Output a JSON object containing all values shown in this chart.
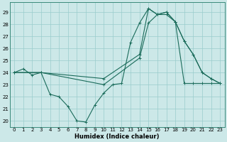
{
  "xlabel": "Humidex (Indice chaleur)",
  "bg_color": "#cce8e8",
  "line_color": "#1a6b5a",
  "grid_color": "#99cccc",
  "xlim": [
    -0.5,
    23.5
  ],
  "ylim": [
    19.5,
    29.8
  ],
  "yticks": [
    20,
    21,
    22,
    23,
    24,
    25,
    26,
    27,
    28,
    29
  ],
  "xticks": [
    0,
    1,
    2,
    3,
    4,
    5,
    6,
    7,
    8,
    9,
    10,
    11,
    12,
    13,
    14,
    15,
    16,
    17,
    18,
    19,
    20,
    21,
    22,
    23
  ],
  "line1_x": [
    0,
    1,
    2,
    3,
    4,
    5,
    6,
    7,
    8,
    9,
    10,
    11,
    12,
    13,
    14,
    15,
    16,
    17,
    18,
    19,
    20,
    21,
    22,
    23
  ],
  "line1_y": [
    24,
    24.3,
    23.8,
    24.0,
    22.2,
    22.0,
    21.2,
    20.0,
    19.9,
    21.3,
    22.3,
    23.0,
    23.1,
    26.5,
    28.1,
    29.3,
    28.8,
    29.0,
    28.2,
    26.6,
    25.5,
    24.0,
    23.5,
    23.1
  ],
  "line2_x": [
    0,
    3,
    10,
    14,
    15,
    16,
    17,
    18,
    19,
    20,
    21,
    22,
    23
  ],
  "line2_y": [
    24.0,
    24.0,
    23.5,
    25.5,
    29.3,
    28.8,
    29.0,
    28.2,
    26.6,
    25.5,
    24.0,
    23.5,
    23.1
  ],
  "line3_x": [
    0,
    3,
    10,
    14,
    15,
    16,
    17,
    18,
    19,
    20,
    21,
    22,
    23
  ],
  "line3_y": [
    24.0,
    24.0,
    23.0,
    25.2,
    28.1,
    28.8,
    28.8,
    28.2,
    23.1,
    23.1,
    23.1,
    23.1,
    23.1
  ]
}
